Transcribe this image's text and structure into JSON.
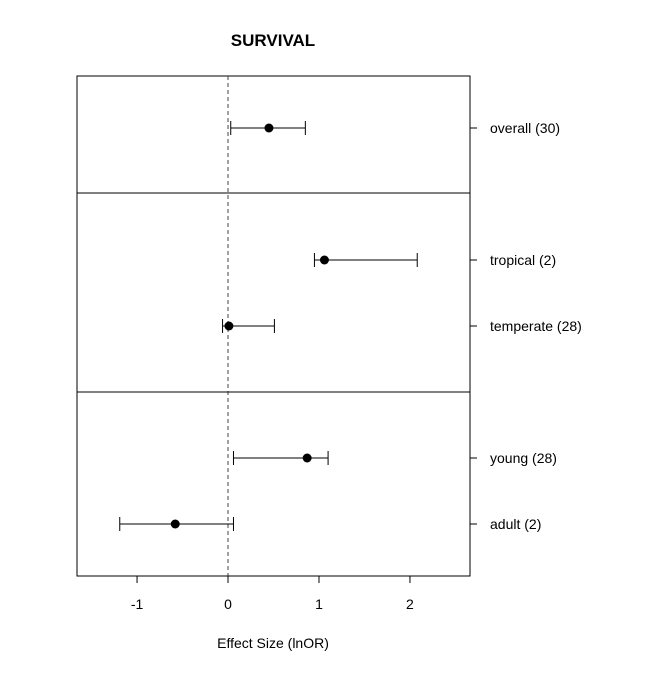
{
  "chart_data": {
    "type": "forest",
    "title": "SURVIVAL",
    "xlabel": "Effect Size (lnOR)",
    "xlim": [
      -1.66,
      2.66
    ],
    "xticks": [
      -1,
      0,
      1,
      2
    ],
    "xtick_labels": [
      "-1",
      "0",
      "1",
      "2"
    ],
    "reference_line": 0,
    "groups": [
      {
        "rows": [
          {
            "label": "overall (30)",
            "estimate": 0.45,
            "lower": 0.03,
            "upper": 0.85
          }
        ]
      },
      {
        "rows": [
          {
            "label": "tropical (2)",
            "estimate": 1.06,
            "lower": 0.95,
            "upper": 2.08
          },
          {
            "label": "temperate (28)",
            "estimate": 0.01,
            "lower": -0.06,
            "upper": 0.51
          }
        ]
      },
      {
        "rows": [
          {
            "label": "young (28)",
            "estimate": 0.87,
            "lower": 0.06,
            "upper": 1.1
          },
          {
            "label": "adult (2)",
            "estimate": -0.58,
            "lower": -1.19,
            "upper": 0.06
          }
        ]
      }
    ]
  }
}
